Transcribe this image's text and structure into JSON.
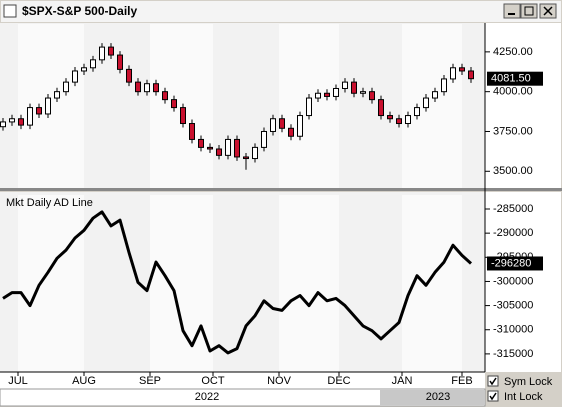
{
  "window": {
    "title": "$SPX-S&P 500-Daily",
    "checkboxes": [
      "Sym Lock",
      "Int Lock"
    ]
  },
  "chart_data": [
    {
      "type": "candlestick",
      "x": [
        0,
        3,
        6,
        9,
        12,
        15,
        18,
        21,
        24,
        27,
        30,
        33,
        36,
        39,
        42,
        45,
        48,
        51,
        54,
        57,
        60,
        63,
        66,
        69,
        72,
        75,
        78,
        81,
        84,
        87,
        90,
        93,
        96,
        99,
        102,
        105,
        108,
        111,
        114,
        117,
        120,
        123,
        126,
        129,
        132,
        135,
        138,
        141,
        144,
        147,
        150,
        153,
        156
      ],
      "open": [
        3780,
        3810,
        3830,
        3790,
        3900,
        3860,
        3960,
        4000,
        4060,
        4130,
        4150,
        4200,
        4280,
        4230,
        4140,
        4060,
        4000,
        4050,
        4000,
        3950,
        3900,
        3800,
        3700,
        3650,
        3640,
        3600,
        3700,
        3590,
        3580,
        3650,
        3750,
        3830,
        3770,
        3720,
        3850,
        3960,
        3990,
        3970,
        4020,
        4060,
        3990,
        4000,
        3950,
        3850,
        3830,
        3800,
        3850,
        3900,
        3960,
        4000,
        4080,
        4150,
        4130
      ],
      "high": [
        3835,
        3855,
        3855,
        3925,
        3925,
        3985,
        4025,
        4085,
        4155,
        4175,
        4225,
        4305,
        4305,
        4255,
        4165,
        4085,
        4075,
        4075,
        4025,
        3975,
        3925,
        3825,
        3725,
        3675,
        3665,
        3725,
        3725,
        3615,
        3675,
        3775,
        3855,
        3855,
        3795,
        3875,
        3985,
        4015,
        4015,
        4045,
        4085,
        4085,
        4025,
        4025,
        3975,
        3875,
        3855,
        3875,
        3925,
        3985,
        4025,
        4105,
        4175,
        4175,
        4155
      ],
      "low": [
        3755,
        3785,
        3765,
        3765,
        3835,
        3835,
        3935,
        3975,
        4035,
        4105,
        4125,
        4175,
        4205,
        4115,
        4035,
        3975,
        3975,
        3975,
        3925,
        3875,
        3775,
        3675,
        3625,
        3615,
        3575,
        3575,
        3565,
        3510,
        3555,
        3625,
        3725,
        3745,
        3695,
        3695,
        3825,
        3935,
        3945,
        3945,
        3995,
        3965,
        3965,
        3925,
        3825,
        3805,
        3775,
        3775,
        3825,
        3875,
        3935,
        3975,
        4055,
        4105,
        4055
      ],
      "close": [
        3810,
        3830,
        3790,
        3900,
        3860,
        3960,
        4000,
        4060,
        4130,
        4150,
        4200,
        4280,
        4230,
        4140,
        4060,
        4000,
        4050,
        4000,
        3950,
        3900,
        3800,
        3700,
        3650,
        3640,
        3600,
        3700,
        3590,
        3580,
        3650,
        3750,
        3830,
        3770,
        3720,
        3850,
        3960,
        3990,
        3970,
        4020,
        4060,
        3990,
        4000,
        3950,
        3850,
        3830,
        3800,
        3850,
        3900,
        3960,
        4000,
        4080,
        4150,
        4130,
        4081.5
      ],
      "up_color": "#ffffff",
      "down_color": "#c8102e",
      "xlim": [
        -1,
        160
      ],
      "ylim": [
        3395,
        4425
      ],
      "yticks": [
        {
          "value": 3500,
          "label": "3500.00"
        },
        {
          "value": 3750,
          "label": "3750.00"
        },
        {
          "value": 4000,
          "label": "4000.00"
        },
        {
          "value": 4250,
          "label": "4250.00"
        }
      ],
      "last_price": {
        "value": 4081.5,
        "label": "4081.50"
      }
    },
    {
      "type": "line",
      "title": "Mkt Daily AD Line",
      "x": [
        0,
        3,
        6,
        9,
        12,
        15,
        18,
        21,
        24,
        27,
        30,
        33,
        36,
        39,
        42,
        45,
        48,
        51,
        54,
        57,
        60,
        63,
        66,
        69,
        72,
        75,
        78,
        81,
        84,
        87,
        90,
        93,
        96,
        99,
        102,
        105,
        108,
        111,
        114,
        117,
        120,
        123,
        126,
        129,
        132,
        135,
        138,
        141,
        144,
        147,
        150,
        153,
        156
      ],
      "series": [
        {
          "color": "#000000",
          "values": [
            -303500,
            -302300,
            -302300,
            -305000,
            -300800,
            -298100,
            -295200,
            -293500,
            -291000,
            -289400,
            -286900,
            -285600,
            -288500,
            -287300,
            -294000,
            -300200,
            -301900,
            -296000,
            -298800,
            -301900,
            -310200,
            -313300,
            -309200,
            -314400,
            -313300,
            -314800,
            -313900,
            -309200,
            -307100,
            -304000,
            -305600,
            -306000,
            -304000,
            -302900,
            -305000,
            -302300,
            -304000,
            -303500,
            -305000,
            -307100,
            -309200,
            -310200,
            -311900,
            -310200,
            -308500,
            -302900,
            -298800,
            -300800,
            -298100,
            -296000,
            -292500,
            -294600,
            -296280
          ]
        }
      ],
      "xlim": [
        -1,
        160
      ],
      "ylim": [
        -318750,
        -282100
      ],
      "yticks": [
        -315000,
        -310000,
        -305000,
        -300000,
        -295000,
        -290000,
        -285000
      ],
      "last_value": -296280,
      "xticks": [
        {
          "value": 5,
          "label": "JUL"
        },
        {
          "value": 27,
          "label": "AUG"
        },
        {
          "value": 49,
          "label": "SEP"
        },
        {
          "value": 70,
          "label": "OCT"
        },
        {
          "value": 92,
          "label": "NOV"
        },
        {
          "value": 112,
          "label": "DEC"
        },
        {
          "value": 133,
          "label": "JAN"
        },
        {
          "value": 153,
          "label": "FEB"
        }
      ],
      "years": [
        {
          "value": 68,
          "label": "2022"
        },
        {
          "value": 145,
          "label": "2023"
        }
      ]
    }
  ]
}
